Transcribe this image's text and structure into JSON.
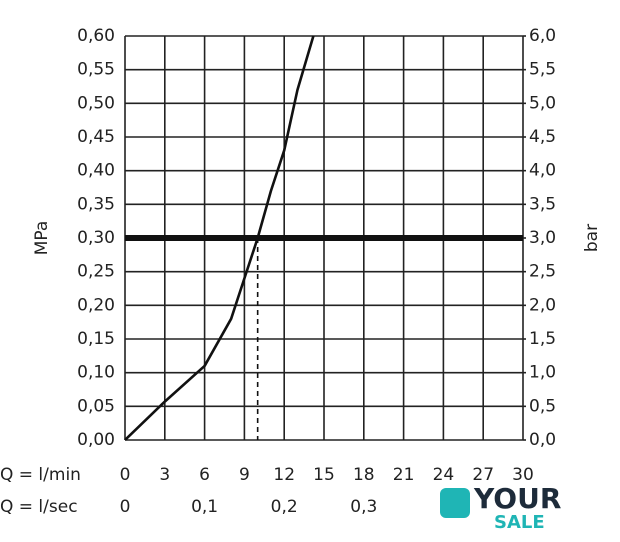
{
  "chart_data": {
    "type": "line",
    "y_label": "MPa",
    "y2_label": "bar",
    "x_label": "Q = l/min",
    "x2_label": "Q = l/sec",
    "x": [
      0,
      3,
      6,
      8,
      9,
      10,
      11,
      12,
      13,
      14.2
    ],
    "series": [
      {
        "color": "#111111",
        "values": [
          0,
          0.057,
          0.11,
          0.18,
          0.24,
          0.3,
          0.37,
          0.43,
          0.52,
          0.6
        ]
      }
    ],
    "xlim": [
      0,
      30
    ],
    "xticks": [
      0,
      3,
      6,
      9,
      12,
      15,
      18,
      21,
      24,
      27,
      30
    ],
    "x2lim": [
      0,
      0.5
    ],
    "x2ticks": [
      0,
      {
        "value": 0.1,
        "label": "0,1"
      },
      {
        "value": 0.2,
        "label": "0,2"
      },
      {
        "value": 0.3,
        "label": "0,3"
      }
    ],
    "ylim": [
      0,
      0.6
    ],
    "yticks": [
      {
        "value": 0,
        "label": "0,00"
      },
      {
        "value": 0.05,
        "label": "0,05"
      },
      {
        "value": 0.1,
        "label": "0,10"
      },
      {
        "value": 0.15,
        "label": "0,15"
      },
      {
        "value": 0.2,
        "label": "0,20"
      },
      {
        "value": 0.25,
        "label": "0,25"
      },
      {
        "value": 0.3,
        "label": "0,30"
      },
      {
        "value": 0.35,
        "label": "0,35"
      },
      {
        "value": 0.4,
        "label": "0,40"
      },
      {
        "value": 0.45,
        "label": "0,45"
      },
      {
        "value": 0.5,
        "label": "0,50"
      },
      {
        "value": 0.55,
        "label": "0,55"
      },
      {
        "value": 0.6,
        "label": "0,60"
      }
    ],
    "y2lim": [
      0,
      6
    ],
    "y2ticks": [
      {
        "value": 0,
        "label": "0,0"
      },
      {
        "value": 0.5,
        "label": "0,5"
      },
      {
        "value": 1,
        "label": "1,0"
      },
      {
        "value": 1.5,
        "label": "1,5"
      },
      {
        "value": 2,
        "label": "2,0"
      },
      {
        "value": 2.5,
        "label": "2,5"
      },
      {
        "value": 3,
        "label": "3,0"
      },
      {
        "value": 3.5,
        "label": "3,5"
      },
      {
        "value": 4,
        "label": "4,0"
      },
      {
        "value": 4.5,
        "label": "4,5"
      },
      {
        "value": 5,
        "label": "5,0"
      },
      {
        "value": 5.5,
        "label": "5,5"
      },
      {
        "value": 6,
        "label": "6,0"
      }
    ],
    "reference_y": 0.3,
    "reference_x": 10,
    "grid": true
  },
  "logo": {
    "line1": "YOUR",
    "line2": "SALE"
  }
}
